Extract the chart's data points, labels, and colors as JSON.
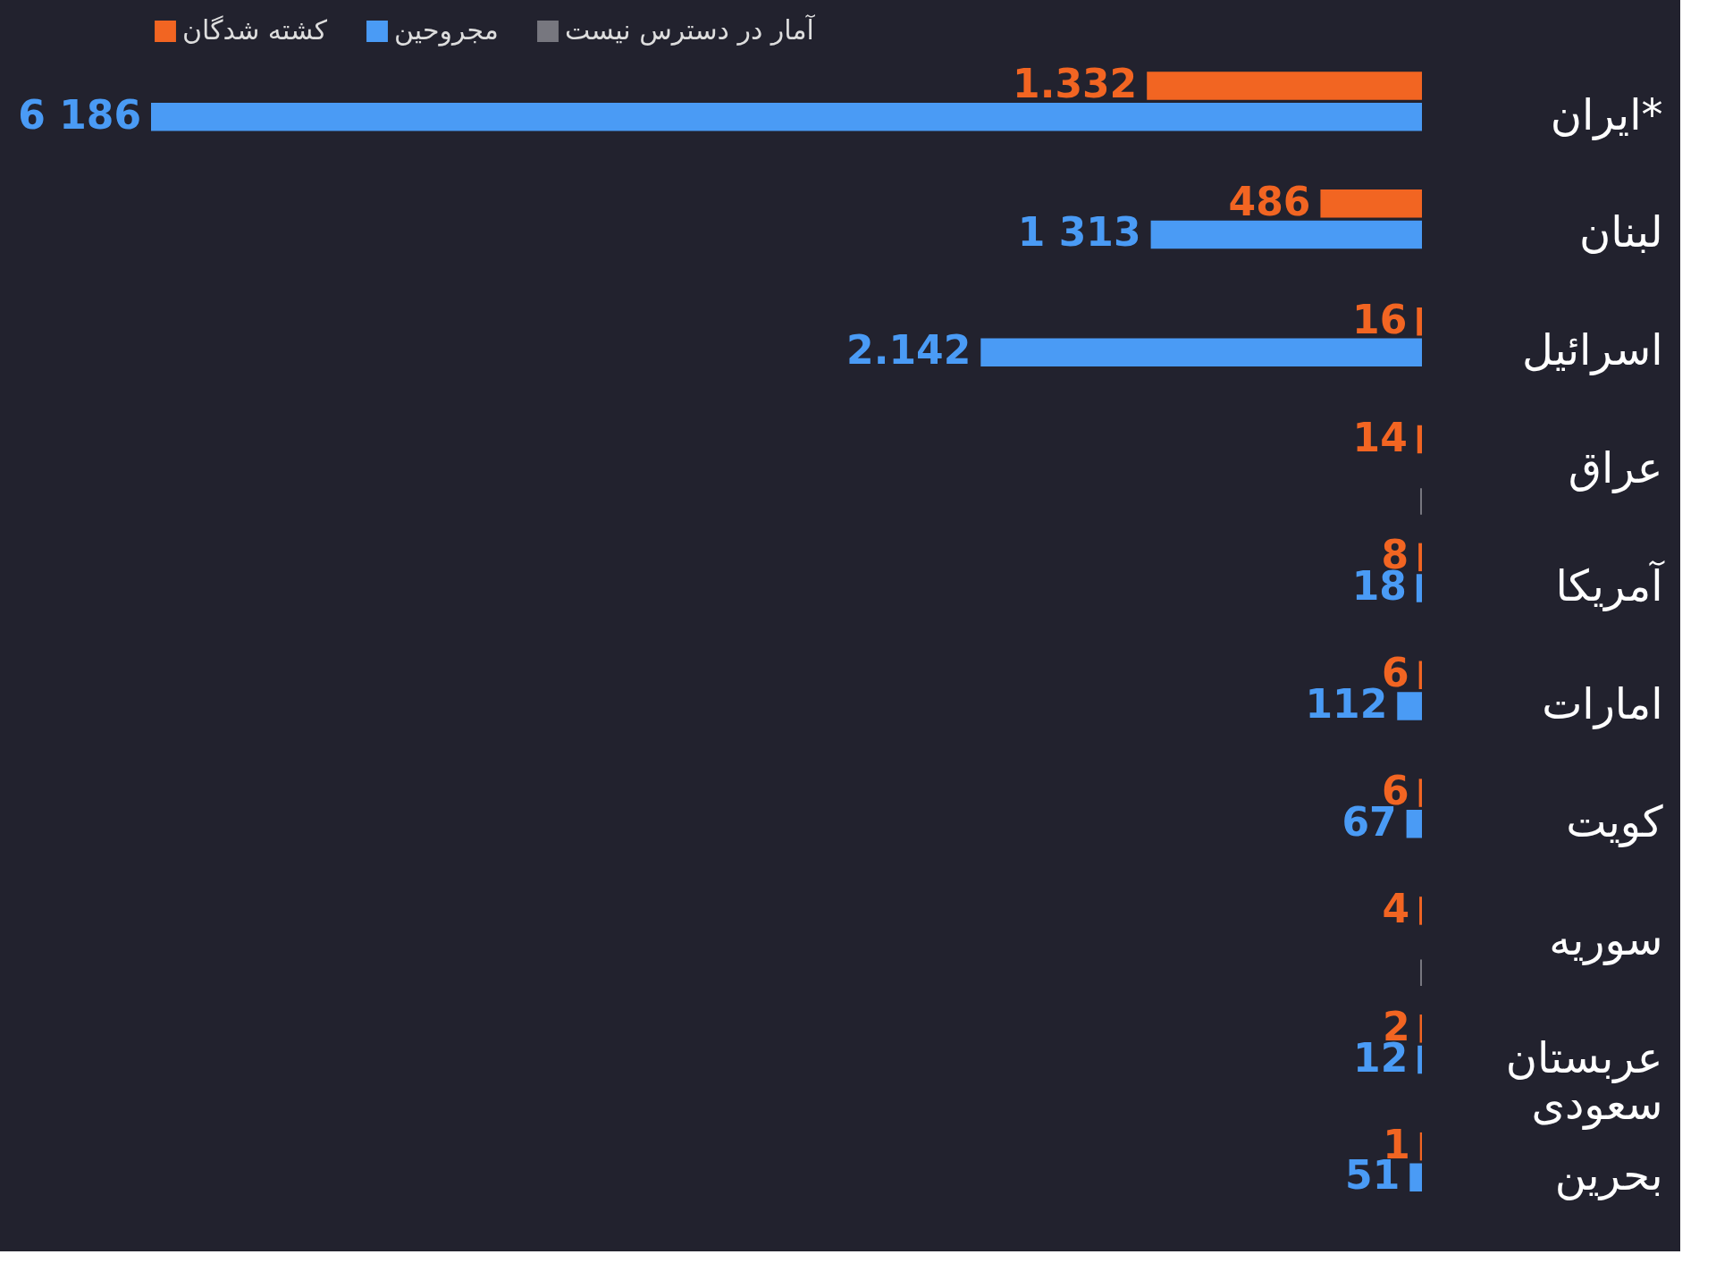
{
  "chart_data": {
    "type": "bar",
    "orientation": "horizontal",
    "legend": "top",
    "categories": [
      "ایران*",
      "لبنان",
      "اسرائیل",
      "عراق",
      "آمریکا",
      "امارات",
      "کویت",
      "سوریه",
      "عربستان سعودی",
      "بحرین"
    ],
    "series": [
      {
        "name": "کشته شدگان",
        "color": "#f26522",
        "values": [
          1332,
          486,
          16,
          14,
          8,
          6,
          6,
          4,
          2,
          1
        ],
        "value_labels": [
          "1.332",
          "486",
          "16",
          "14",
          "8",
          "6",
          "6",
          "4",
          "2",
          "1"
        ]
      },
      {
        "name": "مجروحین",
        "color": "#4a9bf5",
        "values": [
          6186,
          1313,
          2142,
          null,
          18,
          112,
          67,
          null,
          12,
          51
        ],
        "value_labels": [
          "6 186",
          "1 313",
          "2.142",
          null,
          "18",
          "112",
          "67",
          null,
          "12",
          "51"
        ]
      },
      {
        "name": "آمار در دسترس نیست",
        "color": "#77777f",
        "values": [
          null,
          null,
          null,
          0,
          null,
          null,
          null,
          0,
          null,
          null
        ],
        "value_labels": [
          null,
          null,
          null,
          null,
          null,
          null,
          null,
          null,
          null,
          null
        ]
      }
    ]
  }
}
